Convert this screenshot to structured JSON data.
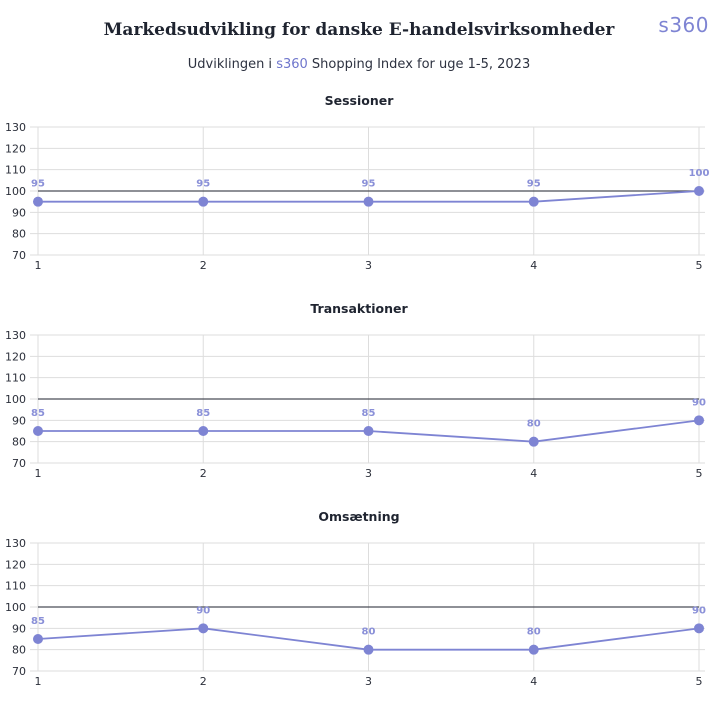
{
  "header": {
    "title": "Markedsudvikling for danske E-handelsvirksomheder",
    "brand": "s360",
    "subtitle_prefix": "Udviklingen i ",
    "subtitle_highlight": "s360",
    "subtitle_suffix": " Shopping Index for uge 1-5, 2023"
  },
  "colors": {
    "line": "#7e84d3",
    "baseline": "#4a4d57",
    "grid": "#dddddd"
  },
  "chart_data": [
    {
      "type": "line",
      "title": "Sessioner",
      "x": [
        1,
        2,
        3,
        4,
        5
      ],
      "series": [
        {
          "values": [
            95,
            95,
            95,
            95,
            100
          ]
        }
      ],
      "data_labels": [
        "95",
        "95",
        "95",
        "95",
        "100"
      ],
      "ylim": [
        70,
        130
      ],
      "yticks": [
        70,
        80,
        90,
        100,
        110,
        120,
        130
      ],
      "reference_line": 100,
      "grid": true
    },
    {
      "type": "line",
      "title": "Transaktioner",
      "x": [
        1,
        2,
        3,
        4,
        5
      ],
      "series": [
        {
          "values": [
            85,
            85,
            85,
            80,
            90
          ]
        }
      ],
      "data_labels": [
        "85",
        "85",
        "85",
        "80",
        "90"
      ],
      "ylim": [
        70,
        130
      ],
      "yticks": [
        70,
        80,
        90,
        100,
        110,
        120,
        130
      ],
      "reference_line": 100,
      "grid": true
    },
    {
      "type": "line",
      "title": "Omsætning",
      "x": [
        1,
        2,
        3,
        4,
        5
      ],
      "series": [
        {
          "values": [
            85,
            90,
            80,
            80,
            90
          ]
        }
      ],
      "data_labels": [
        "85",
        "90",
        "80",
        "80",
        "90"
      ],
      "ylim": [
        70,
        130
      ],
      "yticks": [
        70,
        80,
        90,
        100,
        110,
        120,
        130
      ],
      "reference_line": 100,
      "grid": true
    }
  ]
}
